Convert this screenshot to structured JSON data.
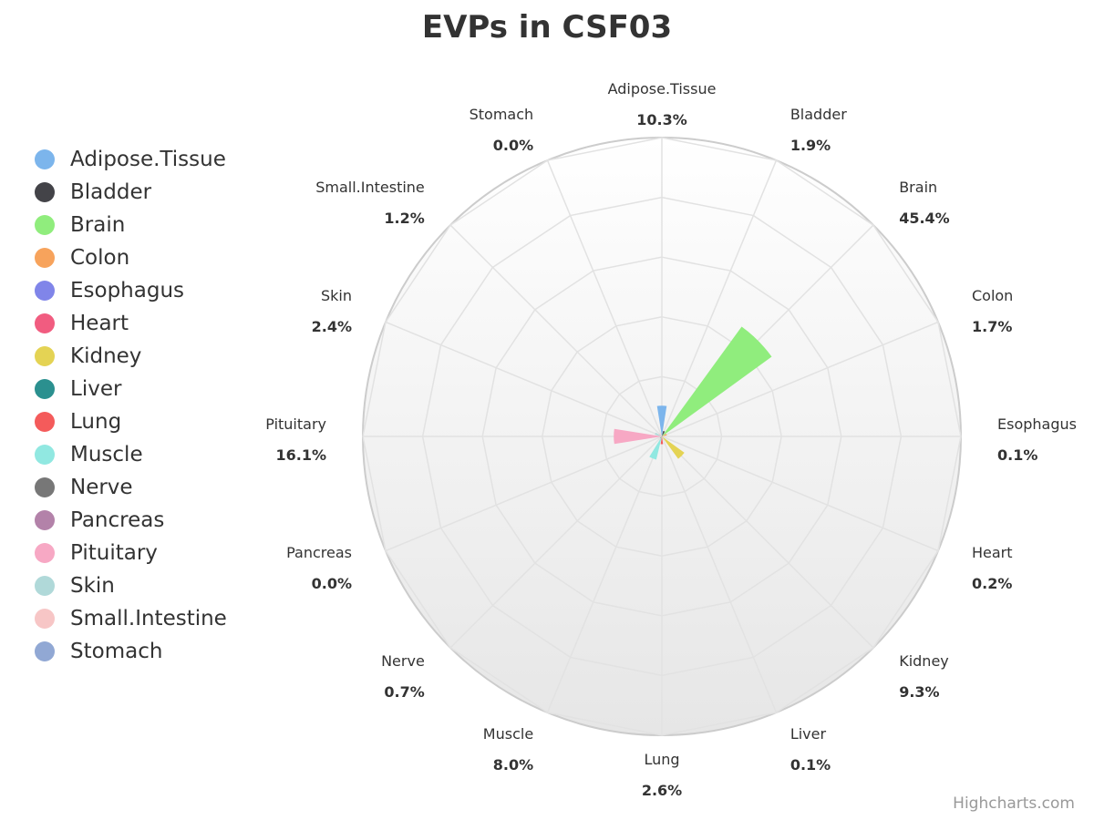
{
  "chart_data": {
    "type": "polar-bar",
    "title": "EVPs in CSF03",
    "categories": [
      "Adipose.Tissue",
      "Bladder",
      "Brain",
      "Colon",
      "Esophagus",
      "Heart",
      "Kidney",
      "Liver",
      "Lung",
      "Muscle",
      "Nerve",
      "Pancreas",
      "Pituitary",
      "Skin",
      "Small.Intestine",
      "Stomach"
    ],
    "values": [
      10.3,
      1.9,
      45.4,
      1.7,
      0.1,
      0.2,
      9.3,
      0.1,
      2.6,
      8.0,
      0.7,
      0.0,
      16.1,
      2.4,
      1.2,
      0.0
    ],
    "value_labels": [
      "10.3%",
      "1.9%",
      "45.4%",
      "1.7%",
      "0.1%",
      "0.2%",
      "9.3%",
      "0.1%",
      "2.6%",
      "8.0%",
      "0.7%",
      "0.0%",
      "16.1%",
      "2.4%",
      "1.2%",
      "0.0%"
    ],
    "colors": [
      "#7cb5ec",
      "#434348",
      "#90ed7d",
      "#f7a35c",
      "#8085e9",
      "#f15c80",
      "#e4d354",
      "#2b908f",
      "#f45b5b",
      "#91e8e1",
      "#777777",
      "#b382a9",
      "#f7a8c4",
      "#b0d9d9",
      "#f7c6c6",
      "#91a8d4"
    ],
    "yrange": [
      0,
      100
    ],
    "grid": true,
    "legend_position": "left"
  },
  "credits": "Highcharts.com"
}
